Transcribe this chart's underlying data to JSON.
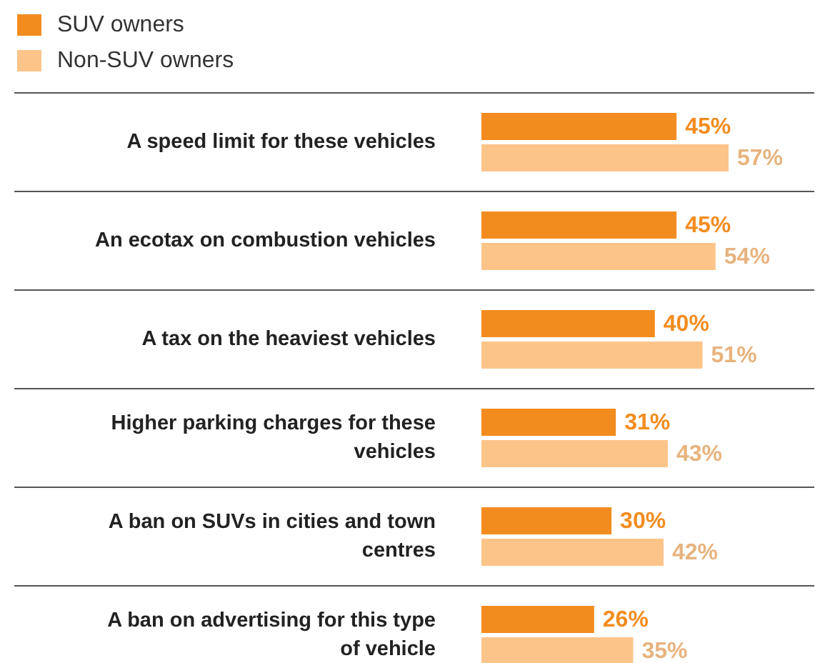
{
  "chart_data": {
    "type": "bar",
    "orientation": "horizontal",
    "legend": "top left",
    "categories": [
      "A speed limit for these vehicles",
      "An ecotax on combustion vehicles",
      "A tax on the heaviest vehicles",
      "Higher parking charges for these vehicles",
      "A ban on SUVs in cities and town centres",
      "A ban on advertising for this type of vehicle"
    ],
    "series": [
      {
        "name": "SUV owners",
        "color": "#f28c1e",
        "values": [
          45,
          45,
          40,
          31,
          30,
          26
        ],
        "value_labels": [
          "45%",
          "45%",
          "40%",
          "31%",
          "30%",
          "26%"
        ]
      },
      {
        "name": "Non-SUV owners",
        "color": "#fdc48a",
        "values": [
          57,
          54,
          51,
          43,
          42,
          35
        ],
        "value_labels": [
          "57%",
          "54%",
          "51%",
          "43%",
          "42%",
          "35%"
        ]
      }
    ]
  }
}
